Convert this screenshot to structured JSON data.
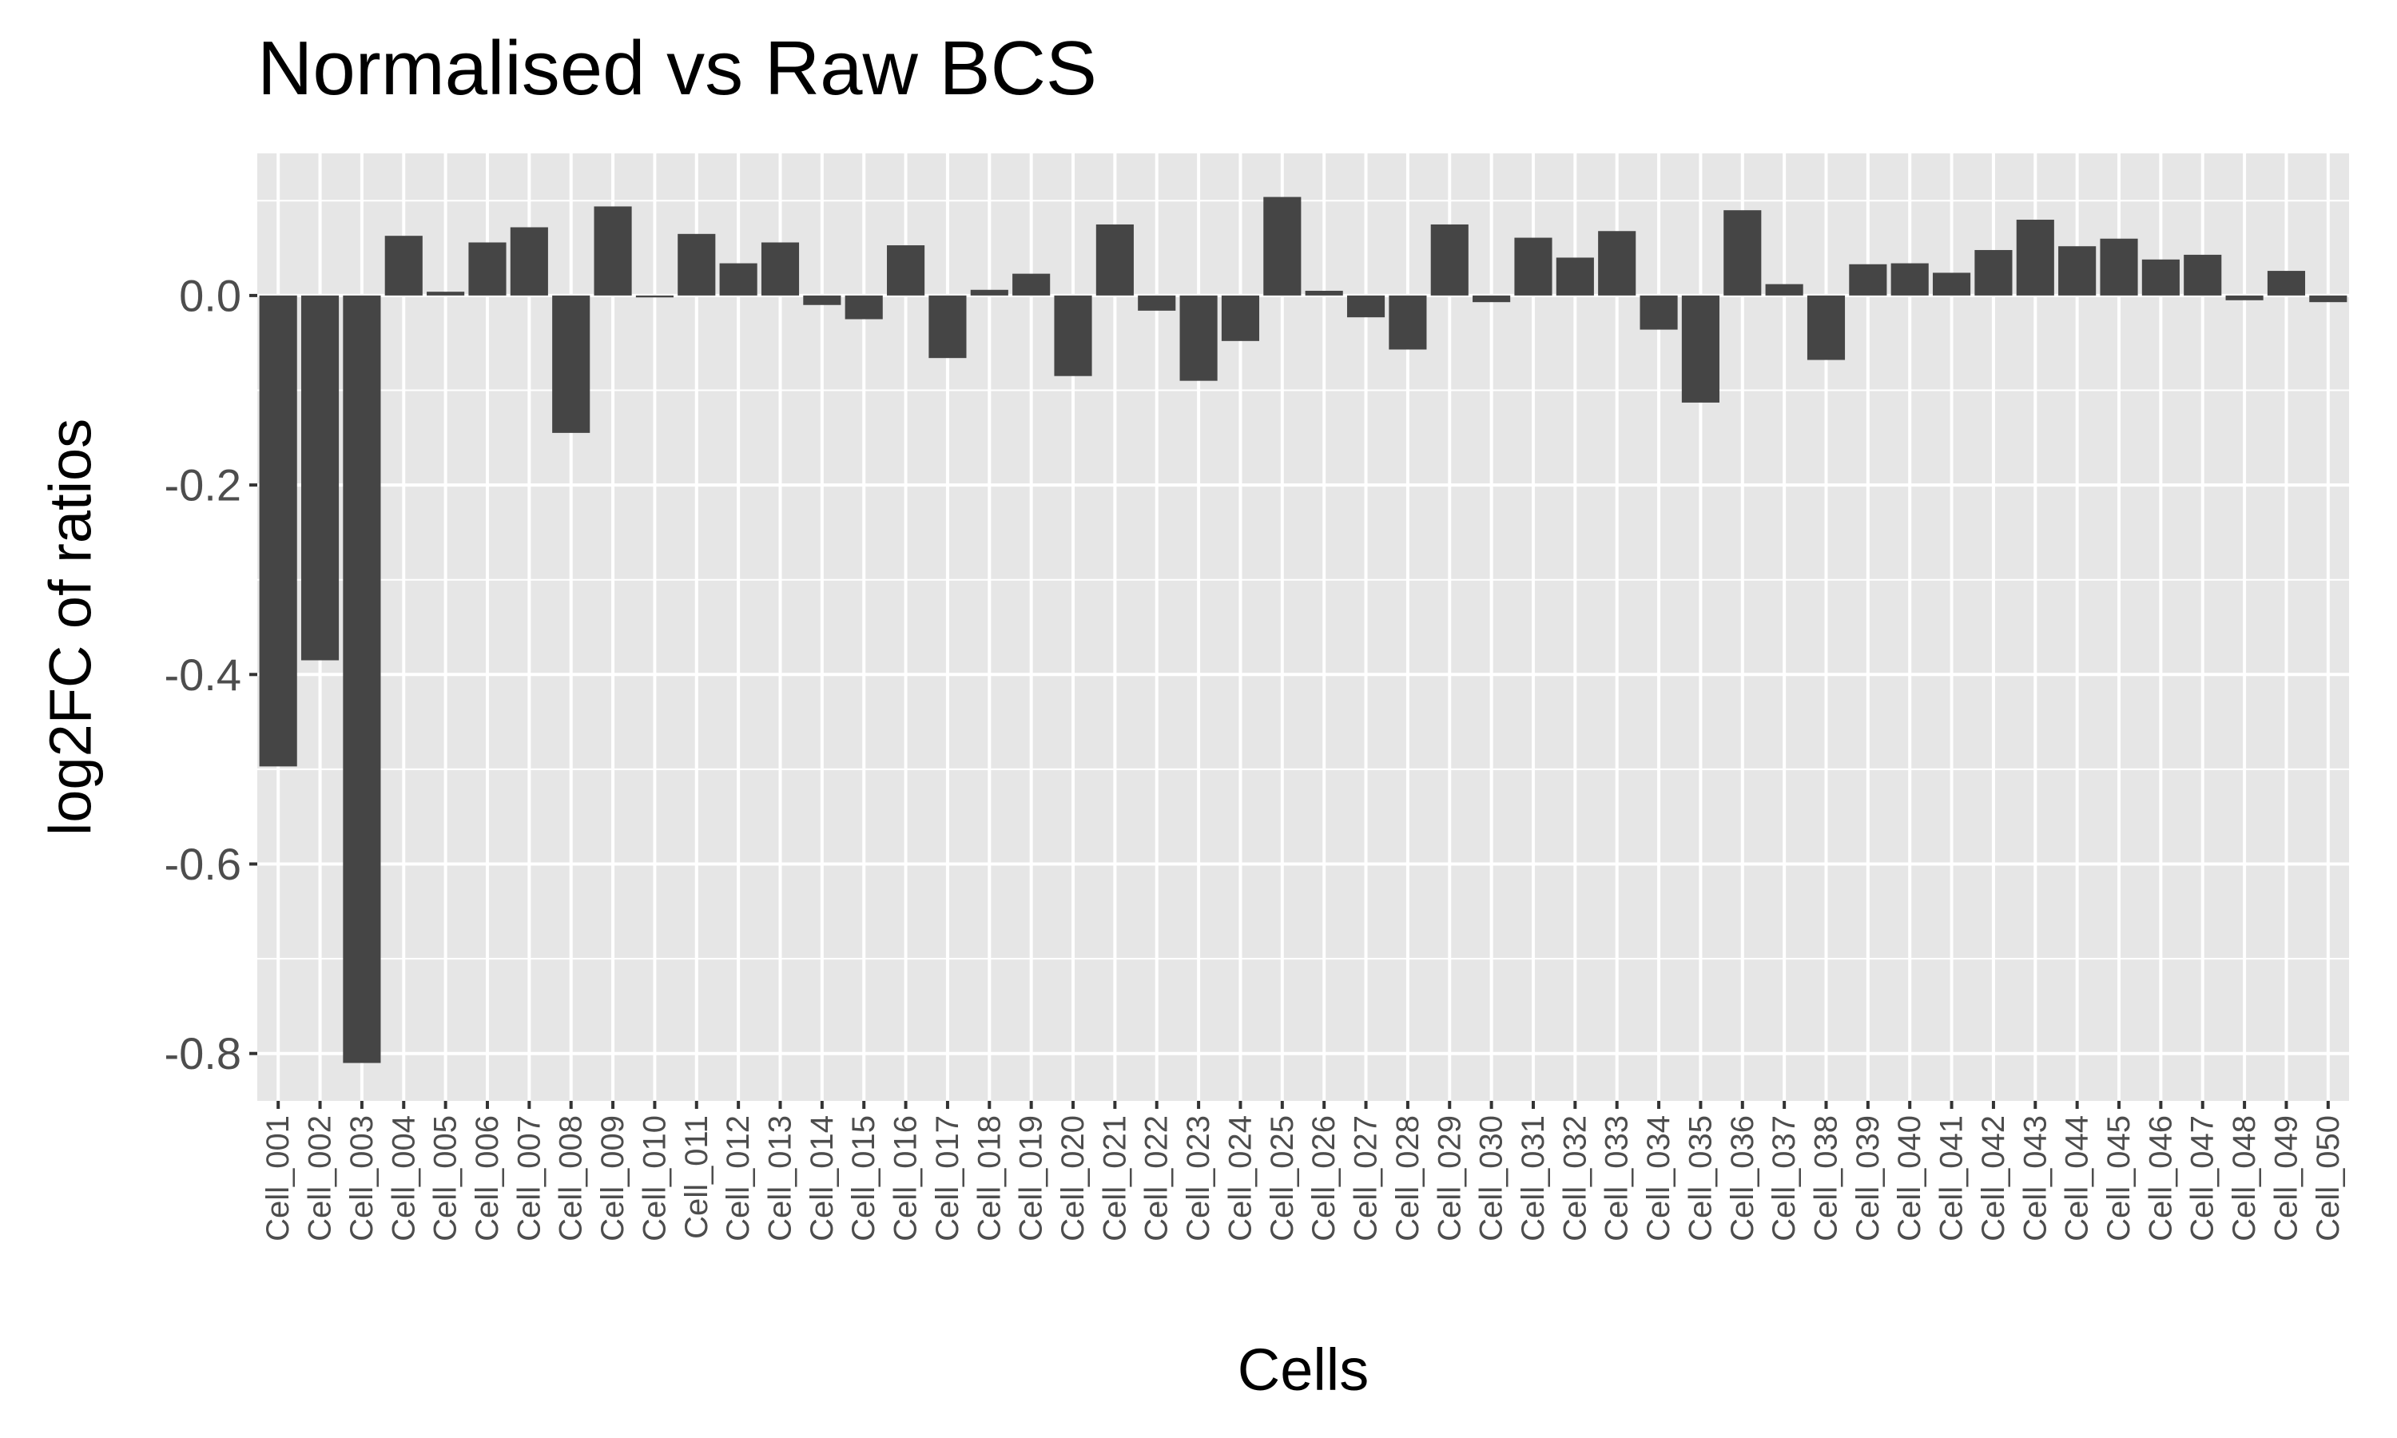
{
  "chart_data": {
    "type": "bar",
    "title": "Normalised vs Raw BCS",
    "xlabel": "Cells",
    "ylabel": "log2FC of ratios",
    "ylim": [
      -0.85,
      0.15
    ],
    "yticks": [
      0.0,
      -0.2,
      -0.4,
      -0.6,
      -0.8
    ],
    "ytick_labels": [
      "0.0",
      "-0.2",
      "-0.4",
      "-0.6",
      "-0.8"
    ],
    "grid": true,
    "legend": "none",
    "colors": {
      "bar": "#454545",
      "panel": "#e6e6e6",
      "grid": "#ffffff",
      "text": "#000000",
      "tick_text": "#4d4d4d"
    },
    "categories": [
      "Cell_001",
      "Cell_002",
      "Cell_003",
      "Cell_004",
      "Cell_005",
      "Cell_006",
      "Cell_007",
      "Cell_008",
      "Cell_009",
      "Cell_010",
      "Cell_011",
      "Cell_012",
      "Cell_013",
      "Cell_014",
      "Cell_015",
      "Cell_016",
      "Cell_017",
      "Cell_018",
      "Cell_019",
      "Cell_020",
      "Cell_021",
      "Cell_022",
      "Cell_023",
      "Cell_024",
      "Cell_025",
      "Cell_026",
      "Cell_027",
      "Cell_028",
      "Cell_029",
      "Cell_030",
      "Cell_031",
      "Cell_032",
      "Cell_033",
      "Cell_034",
      "Cell_035",
      "Cell_036",
      "Cell_037",
      "Cell_038",
      "Cell_039",
      "Cell_040",
      "Cell_041",
      "Cell_042",
      "Cell_043",
      "Cell_044",
      "Cell_045",
      "Cell_046",
      "Cell_047",
      "Cell_048",
      "Cell_049",
      "Cell_050"
    ],
    "values": [
      -0.497,
      -0.385,
      -0.81,
      0.063,
      0.004,
      0.056,
      0.072,
      -0.145,
      0.094,
      -0.002,
      0.065,
      0.034,
      0.056,
      -0.01,
      -0.025,
      0.053,
      -0.066,
      0.006,
      0.023,
      -0.085,
      0.075,
      -0.016,
      -0.09,
      -0.048,
      0.104,
      0.005,
      -0.023,
      -0.057,
      0.075,
      -0.007,
      0.061,
      0.04,
      0.068,
      -0.036,
      -0.113,
      0.09,
      0.012,
      -0.068,
      0.033,
      0.034,
      0.024,
      0.048,
      0.08,
      0.052,
      0.06,
      0.038,
      0.043,
      -0.005,
      0.026,
      -0.007
    ]
  }
}
